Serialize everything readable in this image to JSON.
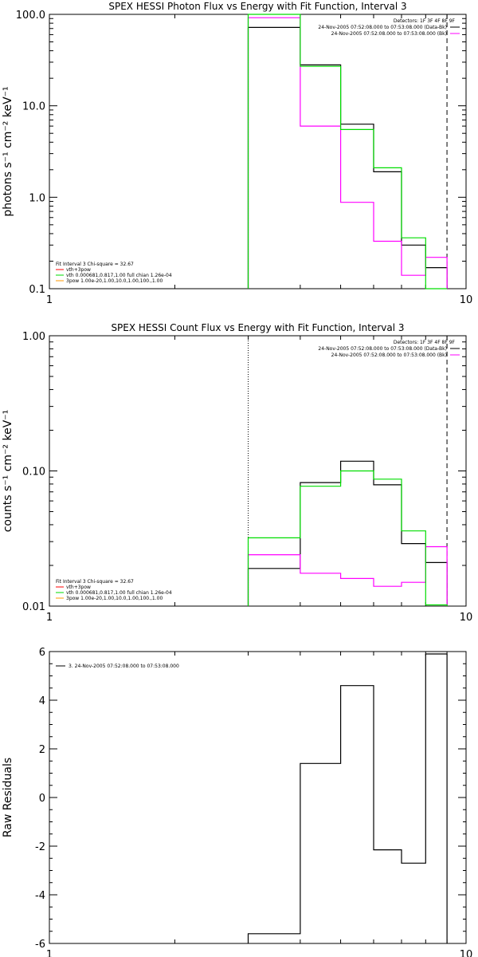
{
  "chart_data": [
    {
      "type": "line",
      "title": "SPEX HESSI Photon Flux vs Energy with Fit Function, Interval 3",
      "ylabel": "photons s⁻¹ cm⁻² keV⁻¹",
      "xscale": "log",
      "yscale": "log",
      "xlim": [
        1,
        10
      ],
      "ylim": [
        0.1,
        100
      ],
      "xticks": [
        "1",
        "10"
      ],
      "yticks": [
        {
          "v": 0.1,
          "label": "0.1"
        },
        {
          "v": 1,
          "label": "1.0"
        },
        {
          "v": 10,
          "label": "10.0"
        },
        {
          "v": 100,
          "label": "100.0"
        }
      ],
      "grid": false,
      "colors": {
        "black": "#000000",
        "magenta": "#ff00ff",
        "green": "#00dd00",
        "orange": "#ff9900",
        "red": "#ff0000"
      },
      "edges": [
        3.0,
        4.0,
        5.0,
        6.0,
        7.0,
        8.0,
        9.0
      ],
      "series": [
        {
          "name": "",
          "color": "#000000",
          "values": [
            72.0,
            28.0,
            6.3,
            1.9,
            0.3,
            0.17
          ]
        },
        {
          "name": "",
          "color": "#ff00ff",
          "values": [
            92.0,
            6.0,
            0.88,
            0.33,
            0.14,
            0.22
          ]
        },
        {
          "name": "",
          "color": "#00dd00",
          "values": [
            100.0,
            27.0,
            5.5,
            2.1,
            0.36,
            0.1
          ]
        }
      ],
      "vlines": [
        {
          "x": 3.0,
          "style": "dotted",
          "color": "#00dd00"
        },
        {
          "x": 9.0,
          "style": "dashed",
          "color": "#000000"
        }
      ],
      "legend_top_right": {
        "title": "Detectors: 1F 3F 4F 8F 9F",
        "entries": [
          {
            "text": "24-Nov-2005 07:52:08.000 to 07:53:08.000 (Data-Bk)",
            "color": "#000000"
          },
          {
            "text": "24-Nov-2005 07:52:08.000 to 07:53:08.000 (Bk)",
            "color": "#ff00ff"
          }
        ]
      },
      "legend_bottom_left": {
        "header": "Fit Interval 3   Chi-square = 32.67",
        "entries": [
          {
            "text": "vth+3pow",
            "color": "#ff0000"
          },
          {
            "text": "vth 0.000681,0.817,1.00  full chian 1.26e-04",
            "color": "#00dd00"
          },
          {
            "text": "3pow 1.00e-20,1.00,10.0,1.00,100.,1.00",
            "color": "#ff9900"
          }
        ]
      }
    },
    {
      "type": "line",
      "title": "SPEX HESSI Count Flux vs Energy with Fit Function, Interval 3",
      "ylabel": "counts s⁻¹ cm⁻² keV⁻¹",
      "xscale": "log",
      "yscale": "log",
      "xlim": [
        1,
        10
      ],
      "ylim": [
        0.01,
        1
      ],
      "xticks": [
        "1",
        "10"
      ],
      "yticks": [
        {
          "v": 0.01,
          "label": "0.01"
        },
        {
          "v": 0.1,
          "label": "0.10"
        },
        {
          "v": 1,
          "label": "1.00"
        }
      ],
      "grid": false,
      "colors": {
        "black": "#000000",
        "magenta": "#ff00ff",
        "green": "#00dd00",
        "orange": "#ff9900",
        "red": "#ff0000"
      },
      "edges": [
        3.0,
        4.0,
        5.0,
        6.0,
        7.0,
        8.0,
        9.0
      ],
      "series": [
        {
          "name": "",
          "color": "#000000",
          "values": [
            0.019,
            0.082,
            0.118,
            0.079,
            0.029,
            0.021
          ]
        },
        {
          "name": "",
          "color": "#ff00ff",
          "values": [
            0.024,
            0.0175,
            0.016,
            0.014,
            0.015,
            0.0275
          ]
        },
        {
          "name": "",
          "color": "#00dd00",
          "values": [
            0.032,
            0.077,
            0.1,
            0.087,
            0.036,
            0.0102
          ]
        }
      ],
      "vlines": [
        {
          "x": 3.0,
          "style": "dotted",
          "color": "#000000"
        },
        {
          "x": 9.0,
          "style": "dashed",
          "color": "#000000"
        }
      ],
      "legend_top_right": {
        "title": "Detectors: 1F 3F 4F 8F 9F",
        "entries": [
          {
            "text": "24-Nov-2005 07:52:08.000 to 07:53:08.000 (Data-Bk)",
            "color": "#000000"
          },
          {
            "text": "24-Nov-2005 07:52:08.000 to 07:53:08.000 (Bk)",
            "color": "#ff00ff"
          }
        ]
      },
      "legend_bottom_left": {
        "header": "Fit Interval 3   Chi-square = 32.67",
        "entries": [
          {
            "text": "vth+3pow",
            "color": "#ff0000"
          },
          {
            "text": "vth 0.000681,0.817,1.00  full chian 1.26e-04",
            "color": "#00dd00"
          },
          {
            "text": "3pow 1.00e-20,1.00,10.0,1.00,100.,1.00",
            "color": "#ff9900"
          }
        ]
      }
    },
    {
      "type": "line",
      "title": "",
      "ylabel": "Raw Residuals",
      "xscale": "log",
      "yscale": "linear",
      "xlim": [
        1,
        10
      ],
      "ylim": [
        -6,
        6
      ],
      "xticks": [
        "1",
        "10"
      ],
      "yticks": [
        {
          "v": -6,
          "label": "-6"
        },
        {
          "v": -4,
          "label": "-4"
        },
        {
          "v": -2,
          "label": "-2"
        },
        {
          "v": 0,
          "label": "0"
        },
        {
          "v": 2,
          "label": "2"
        },
        {
          "v": 4,
          "label": "4"
        },
        {
          "v": 6,
          "label": "6"
        }
      ],
      "grid": false,
      "edges": [
        3.0,
        4.0,
        5.0,
        6.0,
        7.0,
        8.0,
        9.0
      ],
      "series": [
        {
          "name": "",
          "color": "#000000",
          "values": [
            -5.6,
            1.4,
            4.6,
            -2.15,
            -2.7,
            5.9
          ]
        }
      ],
      "legend_top_left": {
        "entries": [
          {
            "text": "3. 24-Nov-2005 07:52:08.000 to 07:53:08.000",
            "color": "#000000"
          }
        ]
      }
    }
  ]
}
